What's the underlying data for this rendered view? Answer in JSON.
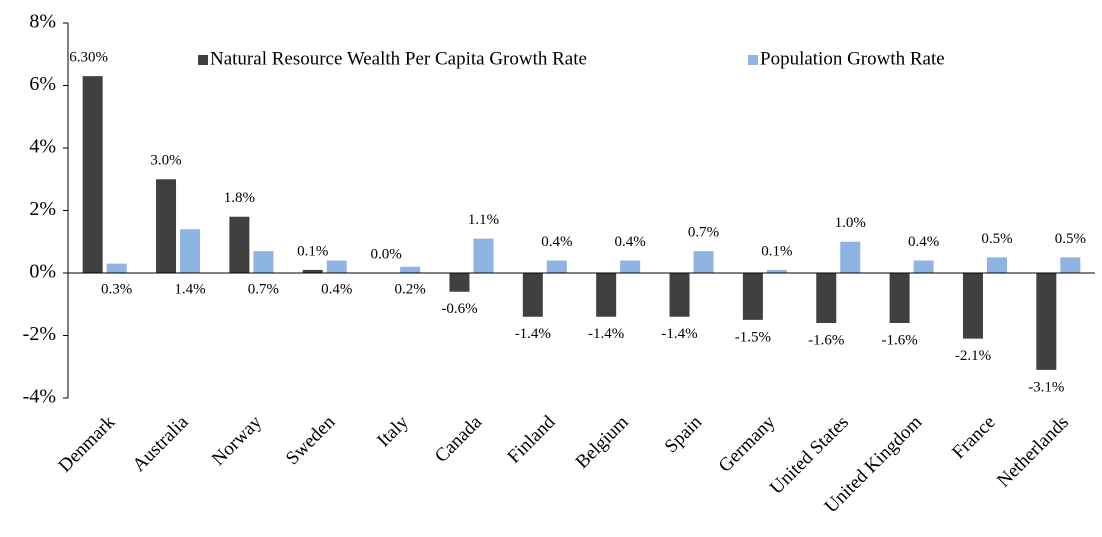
{
  "chart_data": {
    "type": "bar",
    "categories": [
      "Denmark",
      "Australia",
      "Norway",
      "Sweden",
      "Italy",
      "Canada",
      "Finland",
      "Belgium",
      "Spain",
      "Germany",
      "United States",
      "United Kingdom",
      "France",
      "Netherlands"
    ],
    "series": [
      {
        "name": "Natural Resource Wealth Per Capita Growth Rate",
        "color": "#404040",
        "values": [
          6.3,
          3.0,
          1.8,
          0.1,
          0.0,
          -0.6,
          -1.4,
          -1.4,
          -1.4,
          -1.5,
          -1.6,
          -1.6,
          -2.1,
          -3.1
        ],
        "value_labels": [
          "6.30%",
          "3.0%",
          "1.8%",
          "0.1%",
          "0.0%",
          "-0.6%",
          "-1.4%",
          "-1.4%",
          "-1.4%",
          "-1.5%",
          "-1.6%",
          "-1.6%",
          "-2.1%",
          "-3.1%"
        ]
      },
      {
        "name": "Population Growth Rate",
        "color": "#8db4e2",
        "values": [
          0.3,
          1.4,
          0.7,
          0.4,
          0.2,
          1.1,
          0.4,
          0.4,
          0.7,
          0.1,
          1.0,
          0.4,
          0.5,
          0.5
        ],
        "value_labels": [
          "0.3%",
          "1.4%",
          "0.7%",
          "0.4%",
          "0.2%",
          "1.1%",
          "0.4%",
          "0.4%",
          "0.7%",
          "0.1%",
          "1.0%",
          "0.4%",
          "0.5%",
          "0.5%"
        ]
      }
    ],
    "ylim": [
      -4,
      8
    ],
    "yticks": [
      {
        "value": -4,
        "label": "-4%"
      },
      {
        "value": -2,
        "label": "-2%"
      },
      {
        "value": 0,
        "label": "0%"
      },
      {
        "value": 2,
        "label": "2%"
      },
      {
        "value": 4,
        "label": "4%"
      },
      {
        "value": 6,
        "label": "6%"
      },
      {
        "value": 8,
        "label": "8%"
      }
    ],
    "grid": false,
    "legend": "top"
  }
}
